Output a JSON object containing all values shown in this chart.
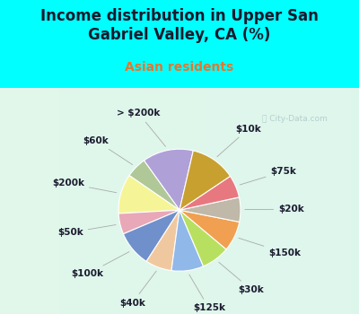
{
  "title": "Income distribution in Upper San\nGabriel Valley, CA (%)",
  "subtitle": "Asian residents",
  "bg_color": "#00FFFF",
  "chart_bg": "#d8f0e8",
  "labels": [
    "> $200k",
    "$60k",
    "$200k",
    "$50k",
    "$100k",
    "$40k",
    "$125k",
    "$30k",
    "$150k",
    "$20k",
    "$75k",
    "$10k"
  ],
  "sizes": [
    13.5,
    5.5,
    10.5,
    5.5,
    9.5,
    7.0,
    8.5,
    7.5,
    8.0,
    6.5,
    6.0,
    12.0
  ],
  "colors": [
    "#b0a0d8",
    "#b0c898",
    "#f5f598",
    "#e8a8b8",
    "#7090cc",
    "#f0c8a0",
    "#90b8e8",
    "#b8e060",
    "#f0a050",
    "#c0b8a8",
    "#e87880",
    "#c8a030"
  ],
  "title_fontsize": 12,
  "subtitle_fontsize": 10,
  "title_color": "#1a1a2e",
  "subtitle_color": "#e07830",
  "label_fontsize": 7.5,
  "startangle": 77,
  "watermark": "ⓘ City-Data.com",
  "watermark_color": "#b0c8c8"
}
